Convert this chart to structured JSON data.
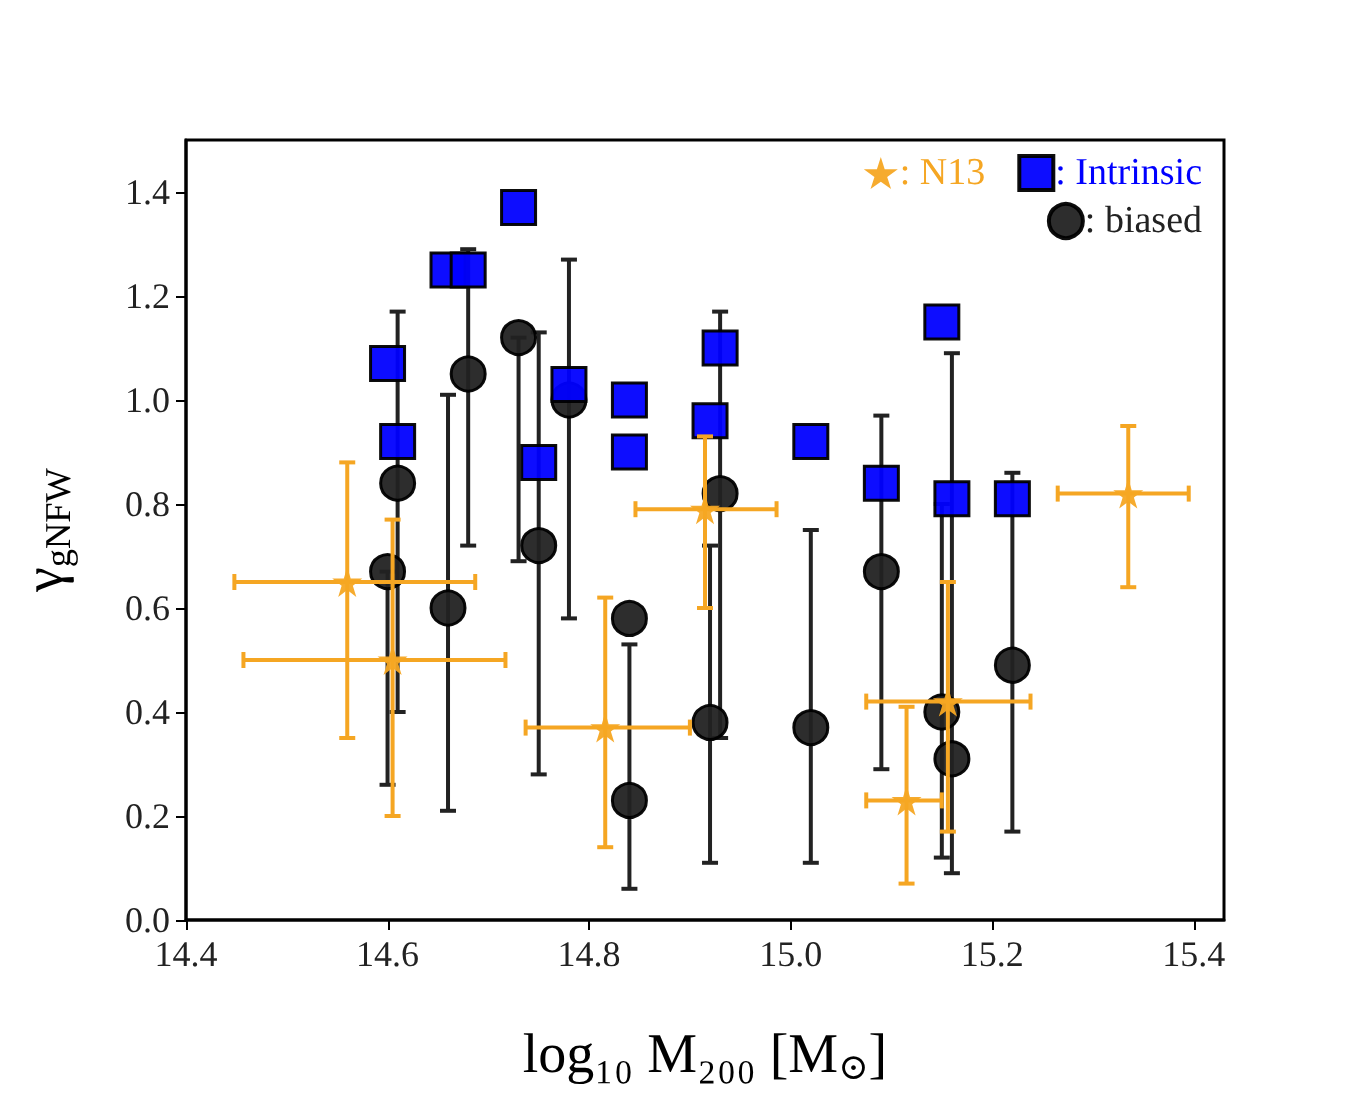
{
  "chart_data": {
    "type": "scatter",
    "xlabel": "log₁₀ M₂₀₀ [M$_{⊙}$]",
    "ylabel": "γ$_{gNFW}$",
    "xlim": [
      14.4,
      15.43
    ],
    "ylim": [
      0,
      1.5
    ],
    "xticks": [
      14.4,
      14.6,
      14.8,
      {
        "value": 15,
        "label": "15.0"
      },
      15.2,
      15.4
    ],
    "yticks": [
      {
        "value": 0,
        "label": "0.0"
      },
      0.2,
      0.4,
      0.6,
      0.8,
      {
        "value": 1,
        "label": "1.0"
      },
      1.2,
      1.4
    ],
    "grid": false,
    "legend": "top right",
    "series": [
      {
        "name": ": N13",
        "color": "#f5a623",
        "marker": "star",
        "x": [
          14.56,
          14.605,
          14.816,
          14.915,
          15.156,
          15.115,
          15.335
        ],
        "values": [
          0.65,
          0.5,
          0.37,
          0.79,
          0.42,
          0.23,
          0.82
        ],
        "errors": [
          [
            0.35,
            0.88
          ],
          [
            0.2,
            0.77
          ],
          [
            0.14,
            0.62
          ],
          [
            0.6,
            0.93
          ],
          [
            0.17,
            0.65
          ],
          [
            0.07,
            0.41
          ],
          [
            0.64,
            0.95
          ]
        ],
        "xerrors": [
          [
            14.448,
            14.687
          ],
          [
            14.457,
            14.717
          ],
          [
            14.737,
            14.9
          ],
          [
            14.846,
            14.986
          ],
          [
            15.075,
            15.238
          ],
          [
            15.075,
            15.15
          ],
          [
            15.265,
            15.395
          ]
        ]
      },
      {
        "name": ": Intrinsic",
        "color": "#0000ff",
        "marker": "square",
        "x": [
          14.6,
          14.61,
          14.66,
          14.68,
          14.73,
          14.75,
          14.78,
          14.84,
          14.84,
          14.92,
          14.93,
          15.02,
          15.09,
          15.15,
          15.16,
          15.22
        ],
        "values": [
          1.07,
          0.92,
          1.25,
          1.25,
          1.37,
          0.88,
          1.03,
          1.0,
          0.9,
          0.96,
          1.1,
          0.92,
          0.84,
          1.15,
          0.81,
          0.81
        ]
      },
      {
        "name": ": biased",
        "color": "#222222",
        "marker": "circle",
        "x": [
          14.6,
          14.61,
          14.66,
          14.68,
          14.73,
          14.75,
          14.78,
          14.84,
          14.84,
          14.92,
          14.93,
          15.02,
          15.09,
          15.15,
          15.16,
          15.22
        ],
        "values": [
          0.67,
          0.84,
          0.6,
          1.05,
          1.12,
          0.72,
          1.0,
          0.58,
          0.23,
          0.38,
          0.82,
          0.37,
          0.67,
          0.4,
          0.31,
          0.49
        ],
        "errors": [
          [
            0.26,
            0.67
          ],
          [
            0.4,
            1.17
          ],
          [
            0.21,
            1.01
          ],
          [
            0.72,
            1.29
          ],
          [
            0.69,
            1.12
          ],
          [
            0.28,
            1.13
          ],
          [
            0.58,
            1.27
          ],
          null,
          [
            0.06,
            0.53
          ],
          [
            0.11,
            0.72
          ],
          [
            0.35,
            1.17
          ],
          [
            0.11,
            0.75
          ],
          [
            0.29,
            0.97
          ],
          [
            0.12,
            0.8
          ],
          [
            0.09,
            1.09
          ],
          [
            0.17,
            0.86
          ]
        ]
      }
    ]
  }
}
